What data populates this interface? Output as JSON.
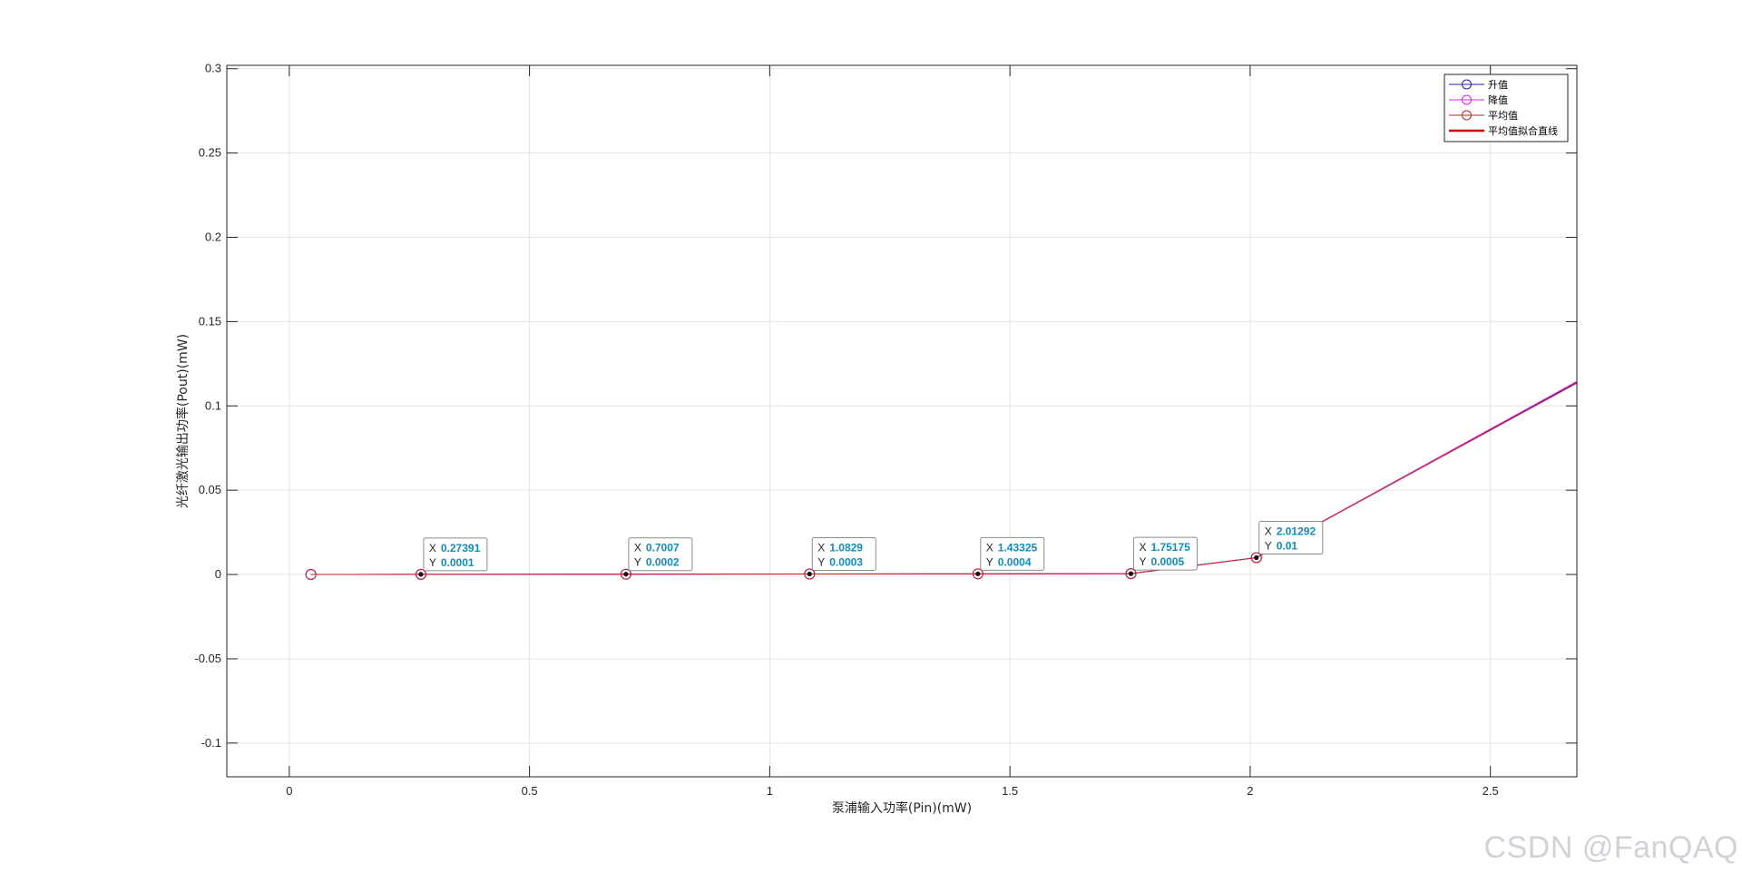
{
  "chart_data": {
    "type": "line",
    "title": "",
    "xlabel": "泵浦输入功率(Pin)(mW)",
    "ylabel": "光纤激光输出功率(Pout)(mW)",
    "xlim": [
      -0.13,
      2.68
    ],
    "ylim": [
      -0.12,
      0.302
    ],
    "xticks": [
      0,
      0.5,
      1,
      1.5,
      2,
      2.5
    ],
    "xtick_labels": [
      "0",
      "0.5",
      "1",
      "1.5",
      "2",
      "2.5"
    ],
    "yticks": [
      -0.1,
      -0.05,
      0,
      0.05,
      0.1,
      0.15,
      0.2,
      0.25,
      0.3
    ],
    "ytick_labels": [
      "-0.1",
      "-0.05",
      "0",
      "0.05",
      "0.1",
      "0.15",
      "0.2",
      "0.25",
      "0.3"
    ],
    "grid": true,
    "legend_position": "top-right",
    "series": [
      {
        "name": "升值",
        "color": "#1f1fb4",
        "marker": "circle",
        "line_width": 1,
        "x": [
          0.045,
          0.27391,
          0.7007,
          1.0829,
          1.43325,
          1.75175,
          2.01292,
          2.68
        ],
        "y": [
          0,
          0.0001,
          0.0002,
          0.0003,
          0.0004,
          0.0005,
          0.01,
          0.114
        ]
      },
      {
        "name": "降值",
        "color": "#e020e0",
        "marker": "circle",
        "line_width": 1,
        "x": [
          0.045,
          0.27391,
          0.7007,
          1.0829,
          1.43325,
          1.75175,
          2.01292,
          2.68
        ],
        "y": [
          0,
          0.0001,
          0.0002,
          0.0003,
          0.0004,
          0.0005,
          0.01,
          0.1145
        ]
      },
      {
        "name": "平均值",
        "color": "#cc2222",
        "marker": "circle",
        "line_width": 1,
        "x": [
          0.045,
          0.27391,
          0.7007,
          1.0829,
          1.43325,
          1.75175,
          2.01292,
          2.68
        ],
        "y": [
          0,
          0.0001,
          0.0002,
          0.0003,
          0.0004,
          0.0005,
          0.01,
          0.1135
        ]
      },
      {
        "name": "平均值拟合直线",
        "color": "#dd0000",
        "marker": "none",
        "line_width": 2.5,
        "x": [],
        "y": []
      }
    ],
    "datatips": [
      {
        "x_text": "0.27391",
        "y_text": "0.0001",
        "x": 0.27391,
        "y": 0.0001
      },
      {
        "x_text": "0.7007",
        "y_text": "0.0002",
        "x": 0.7007,
        "y": 0.0002
      },
      {
        "x_text": "1.0829",
        "y_text": "0.0003",
        "x": 1.0829,
        "y": 0.0003
      },
      {
        "x_text": "1.43325",
        "y_text": "0.0004",
        "x": 1.43325,
        "y": 0.0004
      },
      {
        "x_text": "1.75175",
        "y_text": "0.0005",
        "x": 1.75175,
        "y": 0.0005
      },
      {
        "x_text": "2.01292",
        "y_text": "0.01",
        "x": 2.01292,
        "y": 0.01
      }
    ],
    "datatip_key_x": "X",
    "datatip_key_y": "Y"
  },
  "watermark": "CSDN @FanQAQ"
}
